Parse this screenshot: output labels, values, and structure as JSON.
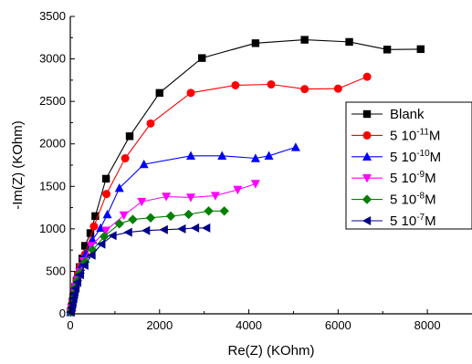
{
  "chart_data": {
    "type": "scatter",
    "title": "",
    "xlabel": "Re(Z) (KOhm)",
    "ylabel": "-Im(Z) (KOhm)",
    "xlim": [
      0,
      9000
    ],
    "ylim": [
      0,
      3500
    ],
    "xticks": [
      0,
      2000,
      4000,
      6000,
      8000
    ],
    "yticks": [
      0,
      500,
      1000,
      1500,
      2000,
      2500,
      3000,
      3500
    ],
    "legend_position": "right",
    "grid": false,
    "series": [
      {
        "name": "Blank",
        "marker": "square",
        "color": "#000000",
        "points": [
          [
            10,
            20
          ],
          [
            30,
            80
          ],
          [
            50,
            140
          ],
          [
            70,
            200
          ],
          [
            90,
            260
          ],
          [
            110,
            320
          ],
          [
            140,
            390
          ],
          [
            170,
            460
          ],
          [
            210,
            550
          ],
          [
            270,
            650
          ],
          [
            330,
            800
          ],
          [
            450,
            950
          ],
          [
            560,
            1150
          ],
          [
            800,
            1590
          ],
          [
            1330,
            2090
          ],
          [
            2000,
            2600
          ],
          [
            2950,
            3010
          ],
          [
            4150,
            3185
          ],
          [
            5250,
            3225
          ],
          [
            6250,
            3200
          ],
          [
            7100,
            3110
          ],
          [
            7850,
            3115
          ]
        ]
      },
      {
        "name": "5 10-11M",
        "label_base": "5 10",
        "label_exp": "-11",
        "label_unit": "M",
        "marker": "circle",
        "color": "#ff0000",
        "points": [
          [
            10,
            20
          ],
          [
            30,
            80
          ],
          [
            50,
            140
          ],
          [
            70,
            200
          ],
          [
            90,
            260
          ],
          [
            110,
            320
          ],
          [
            140,
            390
          ],
          [
            180,
            470
          ],
          [
            230,
            560
          ],
          [
            330,
            700
          ],
          [
            530,
            1030
          ],
          [
            810,
            1410
          ],
          [
            1230,
            1830
          ],
          [
            1800,
            2240
          ],
          [
            2700,
            2600
          ],
          [
            3700,
            2690
          ],
          [
            4500,
            2700
          ],
          [
            5250,
            2645
          ],
          [
            6000,
            2650
          ],
          [
            6650,
            2790
          ]
        ]
      },
      {
        "name": "5 10-10M",
        "label_base": "5 10",
        "label_exp": "-10",
        "label_unit": "M",
        "marker": "triangle-up",
        "color": "#0000ff",
        "points": [
          [
            10,
            20
          ],
          [
            30,
            80
          ],
          [
            50,
            140
          ],
          [
            70,
            200
          ],
          [
            90,
            260
          ],
          [
            110,
            320
          ],
          [
            140,
            390
          ],
          [
            180,
            470
          ],
          [
            230,
            550
          ],
          [
            340,
            700
          ],
          [
            500,
            870
          ],
          [
            680,
            1010
          ],
          [
            830,
            1170
          ],
          [
            1100,
            1480
          ],
          [
            1650,
            1760
          ],
          [
            2700,
            1860
          ],
          [
            3400,
            1860
          ],
          [
            4150,
            1830
          ],
          [
            4450,
            1860
          ],
          [
            5050,
            1960
          ]
        ]
      },
      {
        "name": "5 10-9M",
        "label_base": "5 10",
        "label_exp": "-9",
        "label_unit": "M",
        "marker": "triangle-down",
        "color": "#ff00ff",
        "points": [
          [
            10,
            20
          ],
          [
            30,
            70
          ],
          [
            50,
            130
          ],
          [
            70,
            190
          ],
          [
            90,
            250
          ],
          [
            120,
            320
          ],
          [
            160,
            400
          ],
          [
            210,
            490
          ],
          [
            300,
            620
          ],
          [
            470,
            800
          ],
          [
            800,
            980
          ],
          [
            1200,
            1160
          ],
          [
            1600,
            1320
          ],
          [
            2150,
            1380
          ],
          [
            2700,
            1370
          ],
          [
            3250,
            1390
          ],
          [
            3750,
            1460
          ],
          [
            4150,
            1530
          ]
        ]
      },
      {
        "name": "5 10-8M",
        "label_base": "5 10",
        "label_exp": "-8",
        "label_unit": "M",
        "marker": "diamond",
        "color": "#008000",
        "points": [
          [
            10,
            20
          ],
          [
            30,
            70
          ],
          [
            50,
            130
          ],
          [
            70,
            190
          ],
          [
            90,
            240
          ],
          [
            120,
            310
          ],
          [
            160,
            390
          ],
          [
            220,
            480
          ],
          [
            330,
            610
          ],
          [
            500,
            750
          ],
          [
            760,
            910
          ],
          [
            1100,
            1060
          ],
          [
            1400,
            1110
          ],
          [
            1800,
            1130
          ],
          [
            2250,
            1150
          ],
          [
            2650,
            1170
          ],
          [
            3100,
            1210
          ],
          [
            3450,
            1210
          ]
        ]
      },
      {
        "name": "5 10-7M",
        "label_base": "5 10",
        "label_exp": "-7",
        "label_unit": "M",
        "marker": "triangle-left",
        "color": "#00008b",
        "points": [
          [
            10,
            20
          ],
          [
            30,
            70
          ],
          [
            50,
            120
          ],
          [
            70,
            180
          ],
          [
            90,
            230
          ],
          [
            120,
            300
          ],
          [
            160,
            370
          ],
          [
            220,
            460
          ],
          [
            320,
            570
          ],
          [
            480,
            690
          ],
          [
            700,
            820
          ],
          [
            950,
            920
          ],
          [
            1300,
            960
          ],
          [
            1700,
            980
          ],
          [
            2100,
            990
          ],
          [
            2500,
            1000
          ],
          [
            2800,
            1010
          ],
          [
            3050,
            1010
          ]
        ]
      }
    ]
  }
}
